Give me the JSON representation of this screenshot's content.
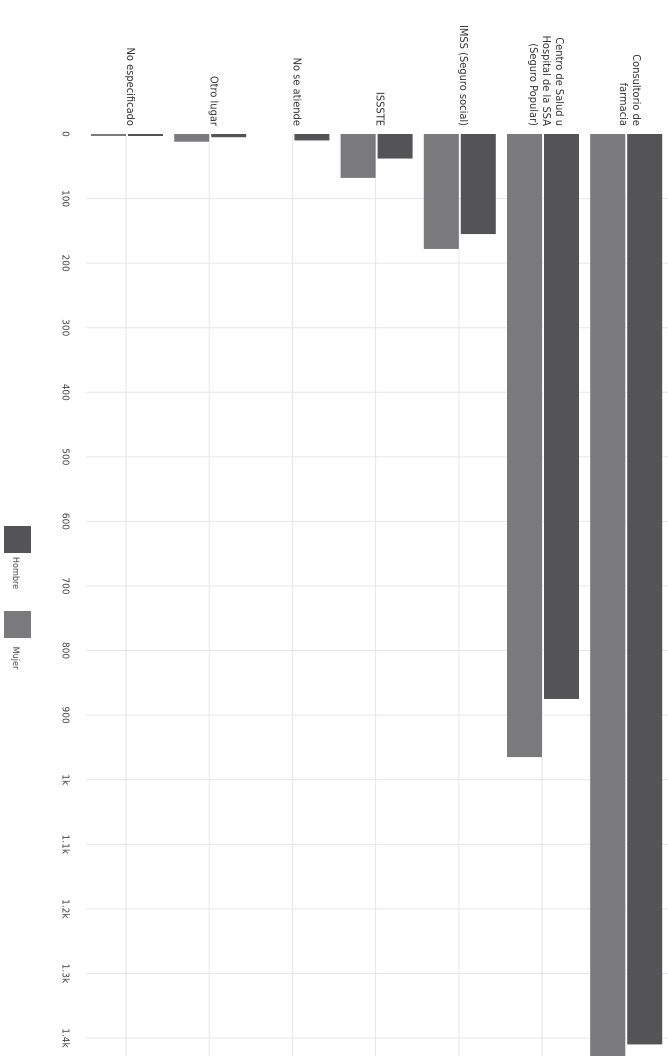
{
  "chart_data": {
    "type": "bar",
    "orientation": "horizontal-bars-rotated-90-clockwise",
    "categories": [
      [
        "No especificado"
      ],
      [
        "Otro lugar"
      ],
      [
        "No se atiende"
      ],
      [
        "ISSSTE"
      ],
      [
        "IMSS (Seguro social)"
      ],
      [
        "Centro de Salud u",
        "Hospital de la SSA",
        "(Seguro Popular)"
      ],
      [
        "Consultorio de",
        "farmacia"
      ]
    ],
    "series": [
      {
        "name": "Mujer",
        "color": "#7a7a7c",
        "values": [
          2,
          12,
          0,
          68,
          178,
          965,
          1435
        ]
      },
      {
        "name": "Hombre",
        "color": "#545456",
        "values": [
          1,
          5,
          10,
          38,
          155,
          875,
          1410
        ]
      }
    ],
    "ticks": [
      {
        "value": 0,
        "label": "0"
      },
      {
        "value": 100,
        "label": "100"
      },
      {
        "value": 200,
        "label": "200"
      },
      {
        "value": 300,
        "label": "300"
      },
      {
        "value": 400,
        "label": "400"
      },
      {
        "value": 500,
        "label": "500"
      },
      {
        "value": 600,
        "label": "600"
      },
      {
        "value": 700,
        "label": "700"
      },
      {
        "value": 800,
        "label": "800"
      },
      {
        "value": 900,
        "label": "900"
      },
      {
        "value": 1000,
        "label": "1k"
      },
      {
        "value": 1100,
        "label": "1.1k"
      },
      {
        "value": 1200,
        "label": "1.2k"
      },
      {
        "value": 1300,
        "label": "1.3k"
      },
      {
        "value": 1400,
        "label": "1.4k"
      }
    ],
    "xlim": [
      0,
      1440
    ],
    "grid": true,
    "legend": {
      "placement": "left",
      "order": [
        "Hombre",
        "Mujer"
      ]
    }
  }
}
